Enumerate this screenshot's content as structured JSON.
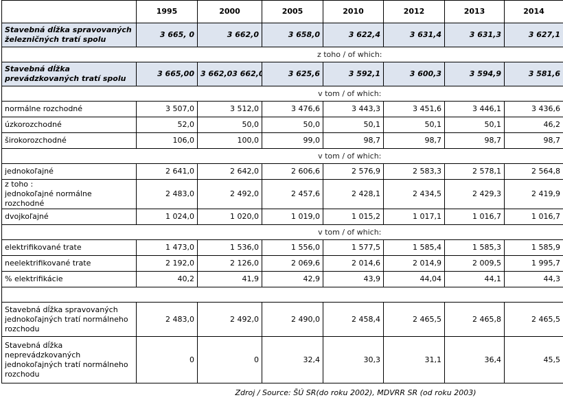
{
  "years": [
    "1995",
    "2000",
    "2005",
    "2010",
    "2012",
    "2013",
    "2014"
  ],
  "total_managed": {
    "label": "Stavebná dĺžka spravovaných železničných tratí spolu",
    "values": [
      "3 665, 0",
      "3 662,0",
      "3 658,0",
      "3 622,4",
      "3 631,4",
      "3 631,3",
      "3 627,1"
    ]
  },
  "of_which_1": "z toho / of which:",
  "total_operated": {
    "label": "Stavebná dĺžka prevádzkovaných tratí spolu",
    "values": [
      "3 665,00",
      "3 662,03 662,0",
      "3 625,6",
      "3 592,1",
      "3 600,3",
      "3 594,9",
      "3 581,6"
    ]
  },
  "of_which_2": "v tom / of which:",
  "gauge_rows": [
    {
      "label": "normálne rozchodné",
      "values": [
        "3 507,0",
        "3 512,0",
        "3 476,6",
        "3 443,3",
        "3 451,6",
        "3 446,1",
        "3 436,6"
      ]
    },
    {
      "label": "úzkorozchodné",
      "values": [
        "52,0",
        "50,0",
        "50,0",
        "50,1",
        "50,1",
        "50,1",
        "46,2"
      ]
    },
    {
      "label": "širokorozchodné",
      "values": [
        "106,0",
        "100,0",
        "99,0",
        "98,7",
        "98,7",
        "98,7",
        "98,7"
      ]
    }
  ],
  "of_which_3": "v tom / of which:",
  "track_rows": [
    {
      "label": "jednokoľajné",
      "values": [
        "2 641,0",
        "2 642,0",
        "2 606,6",
        "2 576,9",
        "2 583,3",
        "2 578,1",
        "2 564,8"
      ]
    },
    {
      "label": "z toho :\njednokoľajné normálne rozchodné",
      "values": [
        "2 483,0",
        "2 492,0",
        "2 457,6",
        "2 428,1",
        "2 434,5",
        "2 429,3",
        "2 419,9"
      ]
    },
    {
      "label": "dvojkoľajné",
      "values": [
        "1 024,0",
        "1 020,0",
        "1 019,0",
        "1 015,2",
        "1 017,1",
        "1 016,7",
        "1 016,7"
      ]
    }
  ],
  "of_which_4": "v tom / of which:",
  "elec_rows": [
    {
      "label": "elektrifikované trate",
      "values": [
        "1 473,0",
        "1 536,0",
        "1 556,0",
        "1 577,5",
        "1 585,4",
        "1 585,3",
        "1 585,9"
      ]
    },
    {
      "label": "neelektrifikované trate",
      "values": [
        "2 192,0",
        "2 126,0",
        "2 069,6",
        "2 014,6",
        "2 014,9",
        "2 009,5",
        "1 995,7"
      ]
    },
    {
      "label": "% elektrifikácie",
      "values": [
        "40,2",
        "41,9",
        "42,9",
        "43,9",
        "44,04",
        "44,1",
        "44,3"
      ]
    }
  ],
  "single_track_managed": {
    "label": "Stavebná dĺžka spravovaných jednokoľajných tratí normálneho rozchodu",
    "values": [
      "2 483,0",
      "2 492,0",
      "2 490,0",
      "2 458,4",
      "2 465,5",
      "2 465,8",
      "2 465,5"
    ]
  },
  "single_track_not_operated": {
    "label": "Stavebná dĺžka neprevádzkovaných jednokoľajných tratí normálneho rozchodu",
    "values": [
      "0",
      "0",
      "32,4",
      "30,3",
      "31,1",
      "36,4",
      "45,5"
    ]
  },
  "source": "Zdroj / Source: ŠÚ SR(do roku 2002), MDVRR SR (od roku 2003)"
}
